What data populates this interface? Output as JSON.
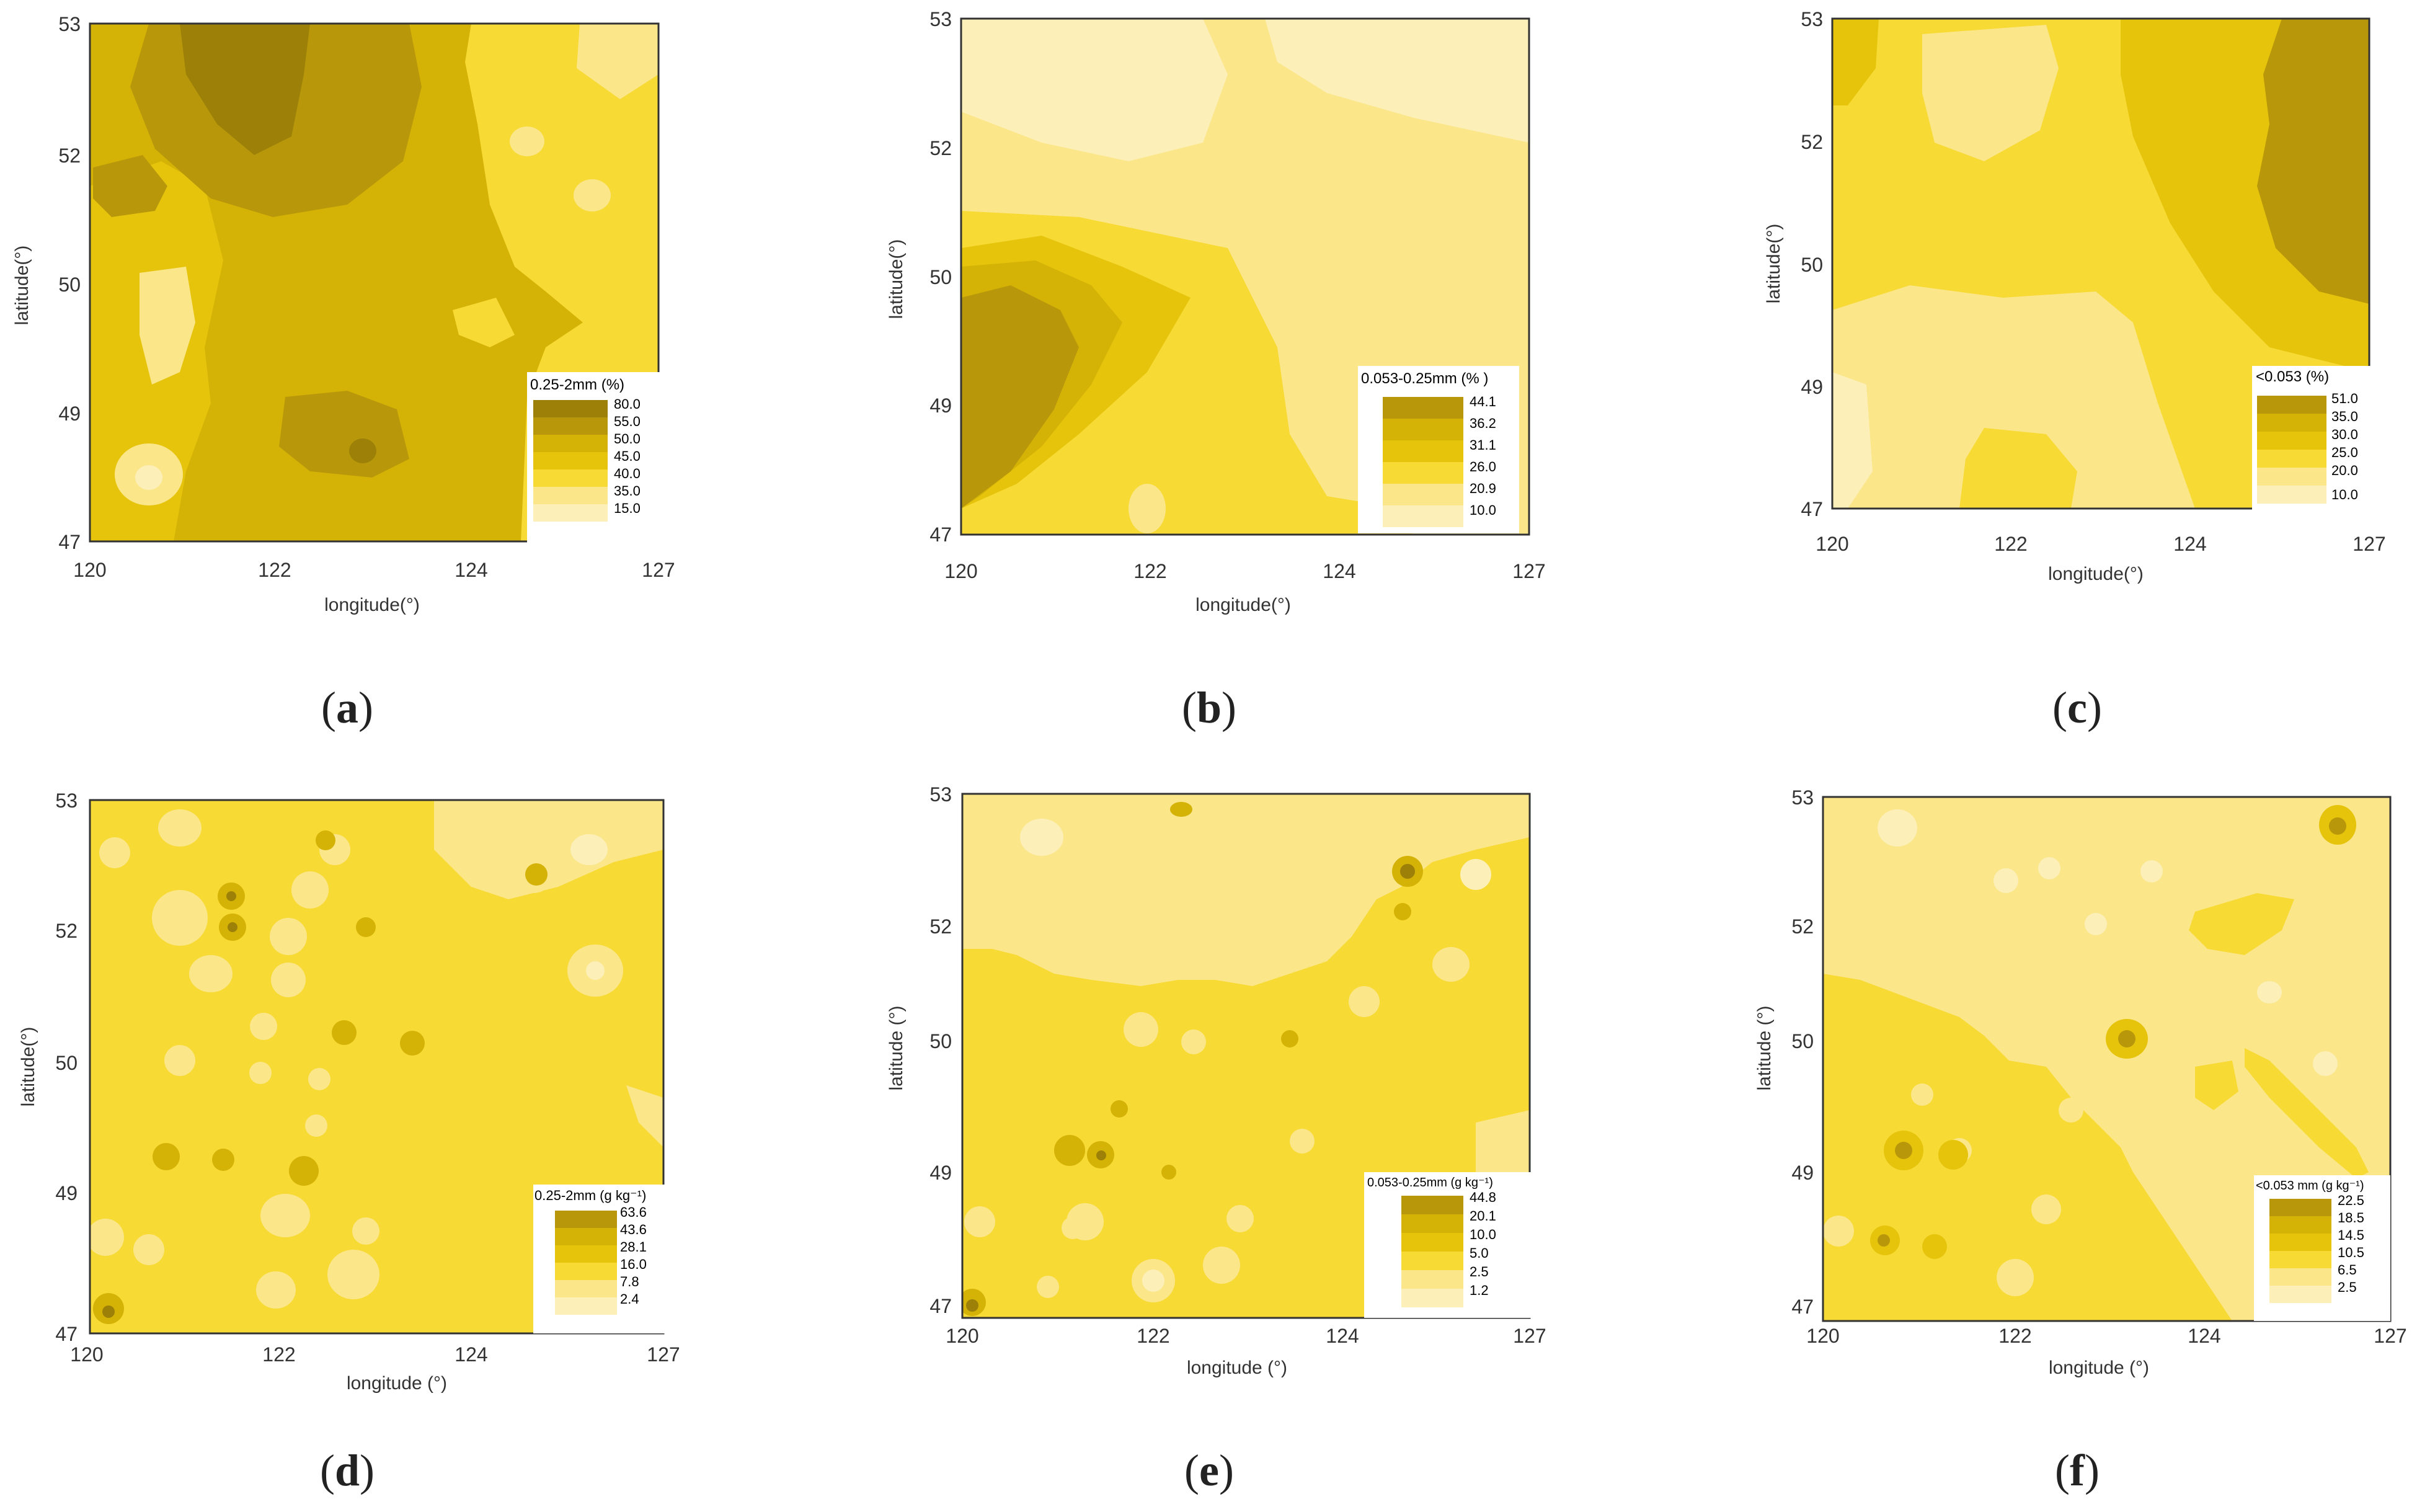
{
  "colors": {
    "level0": "#fcefb8",
    "level1": "#fbe68a",
    "level2": "#f7da34",
    "level3": "#e6c40c",
    "level4": "#d4b206",
    "level5": "#b8980a",
    "level6": "#9c8008",
    "border": "#333333",
    "axis_text": "#333333"
  },
  "panels": [
    {
      "id": "a",
      "caption": "a",
      "xlabel": "longitude(°)",
      "ylabel": "latitude(°)",
      "xticks": [
        "120",
        "122",
        "124",
        "127"
      ],
      "yticks": [
        "53",
        "52",
        "50",
        "49",
        "47"
      ],
      "legend_title": "0.25-2mm (%)",
      "legend_levels": [
        "80.0",
        "55.0",
        "50.0",
        "45.0",
        "40.0",
        "35.0",
        "15.0"
      ]
    },
    {
      "id": "b",
      "caption": "b",
      "xlabel": "longitude(°)",
      "ylabel": "latitude(°)",
      "xticks": [
        "120",
        "122",
        "124",
        "127"
      ],
      "yticks": [
        "53",
        "52",
        "50",
        "49",
        "47"
      ],
      "legend_title": "0.053-0.25mm (% )",
      "legend_levels": [
        "44.1",
        "36.2",
        "31.1",
        "26.0",
        "20.9",
        "10.0"
      ]
    },
    {
      "id": "c",
      "caption": "c",
      "xlabel": "longitude(°)",
      "ylabel": "latitude(°)",
      "xticks": [
        "120",
        "122",
        "124",
        "127"
      ],
      "yticks": [
        "53",
        "52",
        "50",
        "49",
        "47"
      ],
      "legend_title": "<0.053 (%)",
      "legend_levels": [
        "51.0",
        "35.0",
        "30.0",
        "25.0",
        "20.0",
        "10.0"
      ]
    },
    {
      "id": "d",
      "caption": "d",
      "xlabel": "longitude (°)",
      "ylabel": "latitude(°)",
      "xticks": [
        "120",
        "122",
        "124",
        "127"
      ],
      "yticks": [
        "53",
        "52",
        "50",
        "49",
        "47"
      ],
      "legend_title": "0.25-2mm (g kg⁻¹)",
      "legend_levels": [
        "63.6",
        "43.6",
        "28.1",
        "16.0",
        "7.8",
        "2.4"
      ]
    },
    {
      "id": "e",
      "caption": "e",
      "xlabel": "longitude (°)",
      "ylabel": "latitude (°)",
      "xticks": [
        "120",
        "122",
        "124",
        "127"
      ],
      "yticks": [
        "53",
        "52",
        "50",
        "49",
        "47"
      ],
      "legend_title": "0.053-0.25mm (g kg⁻¹)",
      "legend_levels": [
        "44.8",
        "20.1",
        "10.0",
        "5.0",
        "2.5",
        "1.2"
      ]
    },
    {
      "id": "f",
      "caption": "f",
      "xlabel": "longitude (°)",
      "ylabel": "latitude (°)",
      "xticks": [
        "120",
        "122",
        "124",
        "127"
      ],
      "yticks": [
        "53",
        "52",
        "50",
        "49",
        "47"
      ],
      "legend_title": "<0.053 mm (g kg⁻¹)",
      "legend_levels": [
        "22.5",
        "18.5",
        "14.5",
        "10.5",
        "6.5",
        "2.5"
      ]
    }
  ]
}
